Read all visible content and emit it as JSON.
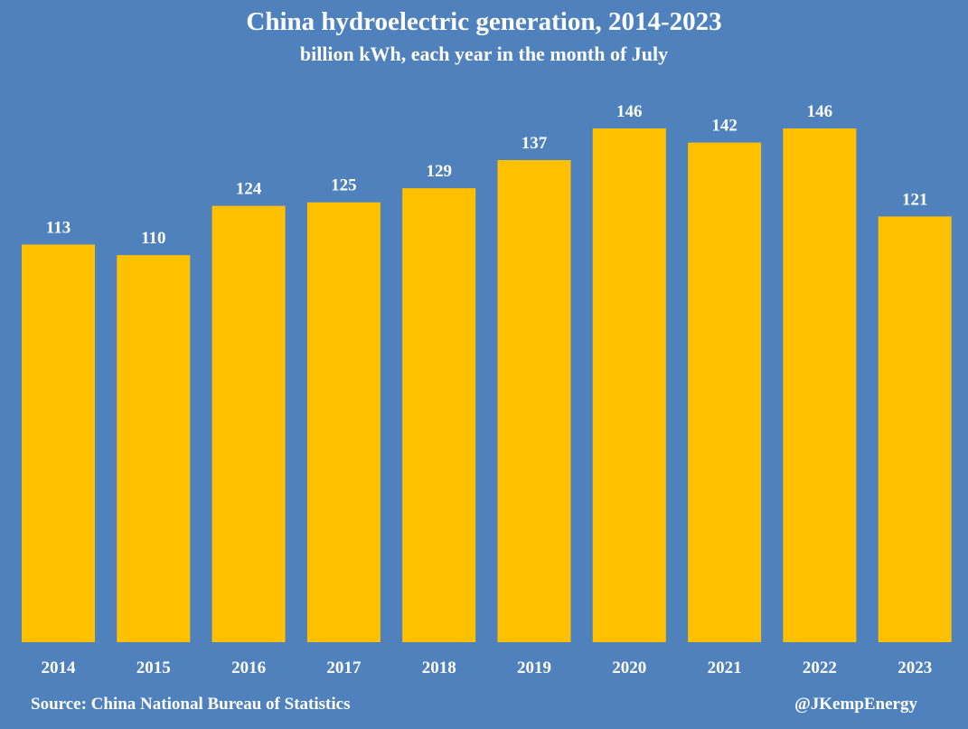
{
  "colors": {
    "background": "#4f81bd",
    "bar": "#ffc000",
    "text": "#ffffff"
  },
  "footer": {
    "source": "Source: China National Bureau of Statistics",
    "handle": "@JKempEnergy"
  },
  "chart_data": {
    "type": "bar",
    "title": "China hydroelectric generation, 2014-2023",
    "subtitle": "billion kWh, each year in the month of July",
    "xlabel": "",
    "ylabel": "",
    "categories": [
      "2014",
      "2015",
      "2016",
      "2017",
      "2018",
      "2019",
      "2020",
      "2021",
      "2022",
      "2023"
    ],
    "values": [
      113,
      110,
      124,
      125,
      129,
      137,
      146,
      142,
      146,
      121
    ],
    "ylim": [
      0,
      150
    ],
    "grid": false,
    "legend": false,
    "data_labels": true
  }
}
